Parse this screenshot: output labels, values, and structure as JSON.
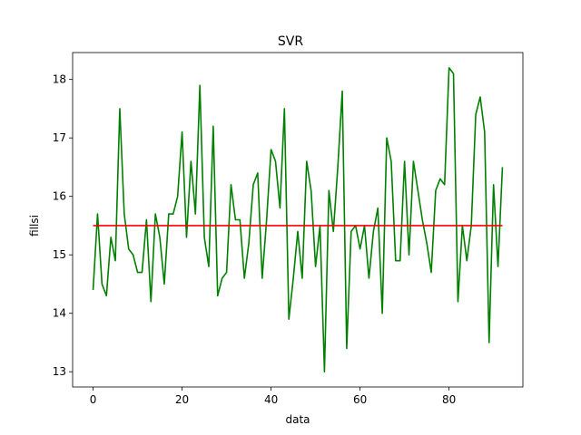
{
  "chart_data": {
    "type": "line",
    "title": "SVR",
    "xlabel": "data",
    "ylabel": "fillsi",
    "xlim": [
      -4.6,
      96.6
    ],
    "ylim": [
      12.74,
      18.46
    ],
    "xticks": [
      0,
      20,
      40,
      60,
      80
    ],
    "yticks": [
      13,
      14,
      15,
      16,
      17,
      18
    ],
    "grid": false,
    "series": [
      {
        "color": "#008000",
        "x": [
          0,
          1,
          2,
          3,
          4,
          5,
          6,
          7,
          8,
          9,
          10,
          11,
          12,
          13,
          14,
          15,
          16,
          17,
          18,
          19,
          20,
          21,
          22,
          23,
          24,
          25,
          26,
          27,
          28,
          29,
          30,
          31,
          32,
          33,
          34,
          35,
          36,
          37,
          38,
          39,
          40,
          41,
          42,
          43,
          44,
          45,
          46,
          47,
          48,
          49,
          50,
          51,
          52,
          53,
          54,
          55,
          56,
          57,
          58,
          59,
          60,
          61,
          62,
          63,
          64,
          65,
          66,
          67,
          68,
          69,
          70,
          71,
          72,
          73,
          74,
          75,
          76,
          77,
          78,
          79,
          80,
          81,
          82,
          83,
          84,
          85,
          86,
          87,
          88,
          89,
          90,
          91,
          92
        ],
        "y": [
          14.4,
          15.7,
          14.5,
          14.3,
          15.3,
          14.9,
          17.5,
          15.7,
          15.1,
          15.0,
          14.7,
          14.7,
          15.6,
          14.2,
          15.7,
          15.3,
          14.5,
          15.7,
          15.7,
          16.0,
          17.1,
          15.3,
          16.6,
          15.7,
          17.9,
          15.3,
          14.8,
          17.2,
          14.3,
          14.6,
          14.7,
          16.2,
          15.6,
          15.6,
          14.6,
          15.2,
          16.2,
          16.4,
          14.6,
          15.6,
          16.8,
          16.6,
          15.8,
          17.5,
          13.9,
          14.6,
          15.4,
          14.6,
          16.6,
          16.1,
          14.8,
          15.5,
          13.0,
          16.1,
          15.4,
          16.5,
          17.8,
          13.4,
          15.4,
          15.5,
          15.1,
          15.5,
          14.6,
          15.4,
          15.8,
          14.0,
          17.0,
          16.6,
          14.9,
          14.9,
          16.6,
          15.0,
          16.6,
          16.1,
          15.6,
          15.2,
          14.7,
          16.1,
          16.3,
          16.2,
          18.2,
          18.1,
          14.2,
          15.5,
          14.9,
          15.5,
          17.4,
          17.7,
          17.1,
          13.5,
          16.2,
          14.8,
          16.5
        ]
      },
      {
        "color": "#ff0000",
        "x": [
          0,
          92
        ],
        "y": [
          15.5,
          15.5
        ]
      }
    ]
  }
}
